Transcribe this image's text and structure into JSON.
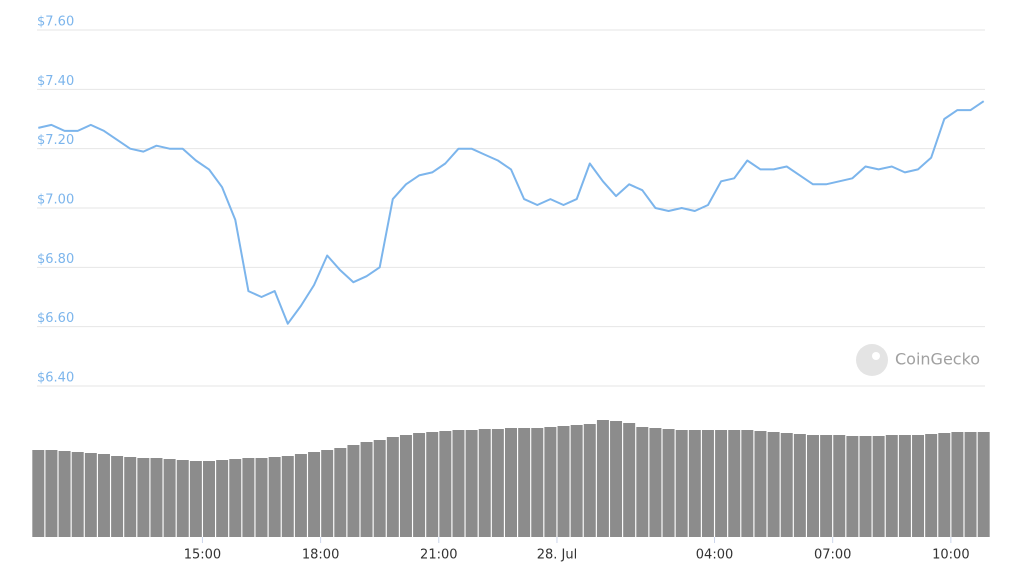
{
  "chart_data": [
    {
      "type": "line",
      "x": [
        "27. Jul 10:50",
        "27. Jul 11:10",
        "27. Jul 11:30",
        "27. Jul 11:50",
        "27. Jul 12:10",
        "27. Jul 12:30",
        "27. Jul 12:50",
        "27. Jul 13:10",
        "27. Jul 13:30",
        "27. Jul 13:50",
        "27. Jul 14:10",
        "27. Jul 14:30",
        "27. Jul 14:50",
        "27. Jul 15:10",
        "27. Jul 15:30",
        "27. Jul 15:50",
        "27. Jul 16:10",
        "27. Jul 16:30",
        "27. Jul 16:50",
        "27. Jul 17:10",
        "27. Jul 17:30",
        "27. Jul 17:50",
        "27. Jul 18:10",
        "27. Jul 18:30",
        "27. Jul 18:50",
        "27. Jul 19:10",
        "27. Jul 19:30",
        "27. Jul 19:50",
        "27. Jul 20:10",
        "27. Jul 20:30",
        "27. Jul 20:50",
        "27. Jul 21:10",
        "27. Jul 21:30",
        "27. Jul 21:50",
        "27. Jul 22:10",
        "27. Jul 22:30",
        "27. Jul 22:50",
        "27. Jul 23:10",
        "27. Jul 23:30",
        "27. Jul 23:50",
        "28. Jul 00:10",
        "28. Jul 00:30",
        "28. Jul 00:50",
        "28. Jul 01:10",
        "28. Jul 01:30",
        "28. Jul 01:50",
        "28. Jul 02:10",
        "28. Jul 02:30",
        "28. Jul 02:50",
        "28. Jul 03:10",
        "28. Jul 03:30",
        "28. Jul 03:50",
        "28. Jul 04:10",
        "28. Jul 04:30",
        "28. Jul 04:50",
        "28. Jul 05:10",
        "28. Jul 05:30",
        "28. Jul 05:50",
        "28. Jul 06:10",
        "28. Jul 06:30",
        "28. Jul 06:50",
        "28. Jul 07:10",
        "28. Jul 07:30",
        "28. Jul 07:50",
        "28. Jul 08:10",
        "28. Jul 08:30",
        "28. Jul 08:50",
        "28. Jul 09:10",
        "28. Jul 09:30",
        "28. Jul 09:50",
        "28. Jul 10:10",
        "28. Jul 10:30",
        "28. Jul 10:50"
      ],
      "series": [
        {
          "color": "#7cb5ec",
          "values": [
            7.27,
            7.28,
            7.26,
            7.26,
            7.28,
            7.26,
            7.23,
            7.2,
            7.19,
            7.21,
            7.2,
            7.2,
            7.16,
            7.13,
            7.07,
            6.96,
            6.72,
            6.7,
            6.72,
            6.61,
            6.67,
            6.74,
            6.84,
            6.79,
            6.75,
            6.77,
            6.8,
            7.03,
            7.08,
            7.11,
            7.12,
            7.15,
            7.2,
            7.2,
            7.18,
            7.16,
            7.13,
            7.03,
            7.01,
            7.03,
            7.01,
            7.03,
            7.15,
            7.09,
            7.04,
            7.08,
            7.06,
            7.0,
            6.99,
            7.0,
            6.99,
            7.01,
            7.09,
            7.1,
            7.16,
            7.13,
            7.13,
            7.14,
            7.11,
            7.08,
            7.08,
            7.09,
            7.1,
            7.14,
            7.13,
            7.14,
            7.12,
            7.13,
            7.17,
            7.3,
            7.33,
            7.33,
            7.36
          ]
        }
      ],
      "xlim": [
        "27. Jul 10:48",
        "28. Jul 10:52"
      ],
      "ylim": [
        6.4,
        7.6
      ],
      "yticks": [
        {
          "value": 6.4,
          "label": "$6.40"
        },
        {
          "value": 6.6,
          "label": "$6.60"
        },
        {
          "value": 6.8,
          "label": "$6.80"
        },
        {
          "value": 7.0,
          "label": "$7.00"
        },
        {
          "value": 7.2,
          "label": "$7.20"
        },
        {
          "value": 7.4,
          "label": "$7.40"
        },
        {
          "value": 7.6,
          "label": "$7.60"
        }
      ],
      "grid": true,
      "watermark": "CoinGecko"
    },
    {
      "type": "bar",
      "x": [
        "27. Jul 10:50",
        "27. Jul 11:10",
        "27. Jul 11:30",
        "27. Jul 11:50",
        "27. Jul 12:10",
        "27. Jul 12:30",
        "27. Jul 12:50",
        "27. Jul 13:10",
        "27. Jul 13:30",
        "27. Jul 13:50",
        "27. Jul 14:10",
        "27. Jul 14:30",
        "27. Jul 14:50",
        "27. Jul 15:10",
        "27. Jul 15:30",
        "27. Jul 15:50",
        "27. Jul 16:10",
        "27. Jul 16:30",
        "27. Jul 16:50",
        "27. Jul 17:10",
        "27. Jul 17:30",
        "27. Jul 17:50",
        "27. Jul 18:10",
        "27. Jul 18:30",
        "27. Jul 18:50",
        "27. Jul 19:10",
        "27. Jul 19:30",
        "27. Jul 19:50",
        "27. Jul 20:10",
        "27. Jul 20:30",
        "27. Jul 20:50",
        "27. Jul 21:10",
        "27. Jul 21:30",
        "27. Jul 21:50",
        "27. Jul 22:10",
        "27. Jul 22:30",
        "27. Jul 22:50",
        "27. Jul 23:10",
        "27. Jul 23:30",
        "27. Jul 23:50",
        "28. Jul 00:10",
        "28. Jul 00:30",
        "28. Jul 00:50",
        "28. Jul 01:10",
        "28. Jul 01:30",
        "28. Jul 01:50",
        "28. Jul 02:10",
        "28. Jul 02:30",
        "28. Jul 02:50",
        "28. Jul 03:10",
        "28. Jul 03:30",
        "28. Jul 03:50",
        "28. Jul 04:10",
        "28. Jul 04:30",
        "28. Jul 04:50",
        "28. Jul 05:10",
        "28. Jul 05:30",
        "28. Jul 05:50",
        "28. Jul 06:10",
        "28. Jul 06:30",
        "28. Jul 06:50",
        "28. Jul 07:10",
        "28. Jul 07:30",
        "28. Jul 07:50",
        "28. Jul 08:10",
        "28. Jul 08:30",
        "28. Jul 08:50",
        "28. Jul 09:10",
        "28. Jul 09:30",
        "28. Jul 09:50",
        "28. Jul 10:10",
        "28. Jul 10:30",
        "28. Jul 10:50"
      ],
      "series": [
        {
          "color": "#8c8c8c",
          "values": [
            87,
            87,
            86,
            85,
            84,
            83,
            81,
            80,
            79,
            79,
            78,
            77,
            76,
            76,
            77,
            78,
            79,
            79,
            80,
            81,
            83,
            85,
            87,
            89,
            92,
            95,
            97,
            100,
            102,
            104,
            105,
            106,
            107,
            107,
            108,
            108,
            109,
            109,
            109,
            110,
            111,
            112,
            113,
            117,
            116,
            114,
            110,
            109,
            108,
            107,
            107,
            107,
            107,
            107,
            107,
            106,
            105,
            104,
            103,
            102,
            102,
            102,
            101,
            101,
            101,
            102,
            102,
            102,
            103,
            104,
            105,
            105,
            105
          ]
        }
      ],
      "xlim": [
        "27. Jul 10:48",
        "28. Jul 10:52"
      ],
      "ylim": [
        0,
        130
      ],
      "xticks": [
        {
          "value": "27. Jul 15:00",
          "label": "15:00"
        },
        {
          "value": "27. Jul 18:00",
          "label": "18:00"
        },
        {
          "value": "27. Jul 21:00",
          "label": "21:00"
        },
        {
          "value": "28. Jul 00:00",
          "label": "28. Jul"
        },
        {
          "value": "28. Jul 04:00",
          "label": "04:00"
        },
        {
          "value": "28. Jul 07:00",
          "label": "07:00"
        },
        {
          "value": "28. Jul 10:00",
          "label": "10:00"
        }
      ]
    }
  ]
}
